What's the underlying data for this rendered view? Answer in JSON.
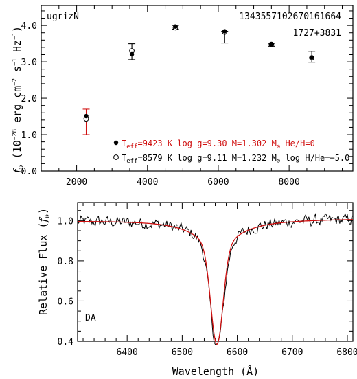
{
  "chart_data": [
    {
      "type": "scatter",
      "title": "",
      "xlabel": "",
      "ylabel": "f_ν (10^-28 erg cm^-2 s^-1 Hz^-1)",
      "ylabel_parts": {
        "f": "f",
        "nu": "ν",
        "open": " (10",
        "e1": "−28",
        "erg": " erg cm",
        "e2": "−2",
        "s": " s",
        "e3": "−1",
        "hz": " Hz",
        "e4": "−1",
        "close": ")"
      },
      "xlim": [
        1000,
        9800
      ],
      "ylim": [
        0.0,
        4.55
      ],
      "x_ticks": [
        2000,
        4000,
        6000,
        8000
      ],
      "y_ticks": [
        "0.0",
        "1.0",
        "2.0",
        "3.0",
        "4.0"
      ],
      "annotations": {
        "filters": "ugrizN",
        "object_id": "1343557102670161664",
        "object_name": "1727+3831"
      },
      "observed": {
        "x": [
          2270,
          3560,
          4790,
          6180,
          7500,
          8640
        ],
        "y": [
          1.35,
          3.28,
          3.95,
          3.68,
          3.47,
          3.14
        ],
        "err": [
          0.35,
          0.22,
          0.05,
          0.16,
          0.04,
          0.15
        ],
        "err_colors": [
          "#d01010",
          "#000000",
          "#000000",
          "#000000",
          "#000000",
          "#000000"
        ]
      },
      "series": [
        {
          "name": "T_eff=9423 K log g=9.30 M=1.302 M_⊙ He/H=0",
          "marker": "filled-circle",
          "color": "#d01010",
          "x": [
            2270,
            3560,
            4790,
            6180,
            7500,
            8640
          ],
          "y": [
            1.51,
            3.21,
            3.97,
            3.84,
            3.48,
            3.12
          ]
        },
        {
          "name": "T_eff=8579 K log g=9.11 M=1.232 M_⊙ log H/He=−5.0",
          "marker": "open-circle",
          "color": "#000000",
          "x": [
            2270,
            3560,
            4790,
            6180,
            7500,
            8640
          ],
          "y": [
            1.43,
            3.3,
            3.94,
            3.82,
            3.48,
            3.11
          ]
        }
      ],
      "legend": [
        {
          "prefix": "T",
          "sub": "eff",
          "text": "=9423 K  log g=9.30  M=1.302 M",
          "sun": "⊙",
          "tail": " He/H=0",
          "color": "#d01010"
        },
        {
          "prefix": "T",
          "sub": "eff",
          "text": "=8579 K  log g=9.11  M=1.232 M",
          "sun": "⊙",
          "tail": " log H/He=−5.0",
          "color": "#000000"
        }
      ]
    },
    {
      "type": "line",
      "title": "",
      "xlabel": "Wavelength (Å)",
      "ylabel": "Relative Flux (f_ν)",
      "ylabel_parts": {
        "main": "Relative Flux (",
        "f": "f",
        "nu": "ν",
        "close": ")"
      },
      "xlim": [
        6310,
        6810
      ],
      "ylim": [
        0.4,
        1.09
      ],
      "x_ticks": [
        6400,
        6500,
        6600,
        6700,
        6800
      ],
      "y_ticks": [
        "0.4",
        "0.6",
        "0.8",
        "1.0"
      ],
      "label": "DA",
      "series": [
        {
          "name": "observed",
          "color": "#000000",
          "style": "noisy",
          "line_center": 6563,
          "line_depth": 0.49,
          "line_width": 12,
          "wing_depth": 0.14,
          "wing_width": 45,
          "noise": 0.04
        },
        {
          "name": "model",
          "color": "#d01010",
          "style": "smooth",
          "line_center": 6563,
          "line_depth": 0.48,
          "line_width": 11,
          "wing_depth": 0.14,
          "wing_width": 45
        }
      ]
    }
  ]
}
